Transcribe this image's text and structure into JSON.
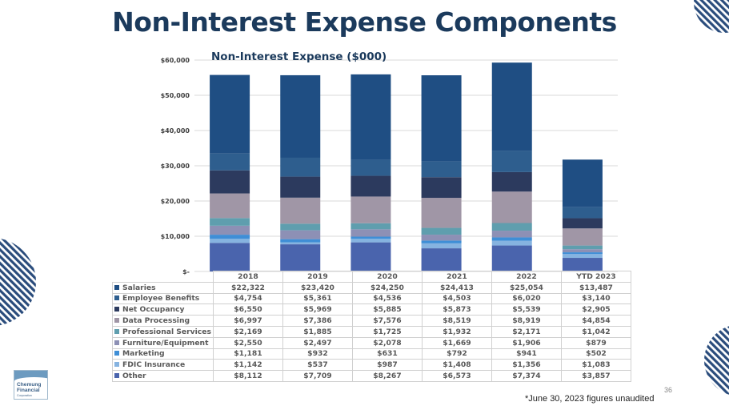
{
  "header": {
    "title": "Non-Interest Expense Components"
  },
  "footer": {
    "footnote": "*June 30, 2023 figures unaudited",
    "page_number": "36"
  },
  "logo": {
    "name_line1": "Chemung",
    "name_line2": "Financial",
    "name_line3": "Corporation"
  },
  "colors": {
    "title": "#1b3a5c",
    "Salaries": "#1f4e83",
    "Employee Benefits": "#2e5e8e",
    "Net Occupancy": "#2c3a5e",
    "Data Processing": "#a096a6",
    "Professional Services": "#5f9eae",
    "Furniture/Equipment": "#8d90b5",
    "Marketing": "#3f8ed6",
    "FDIC Insurance": "#86b3e0",
    "Other": "#4a64ad",
    "stripes": "#2a4c7c"
  },
  "chart_data": {
    "type": "bar",
    "stacked": true,
    "title": "Non-Interest Expense ($000)",
    "categories": [
      "2018",
      "2019",
      "2020",
      "2021",
      "2022",
      "YTD 2023"
    ],
    "ylim": [
      0,
      60000
    ],
    "yticks": [
      0,
      10000,
      20000,
      30000,
      40000,
      50000,
      60000
    ],
    "ytick_labels": [
      "$-",
      "$10,000",
      "$20,000",
      "$30,000",
      "$40,000",
      "$50,000",
      "$60,000"
    ],
    "grid": true,
    "series": [
      {
        "name": "Salaries",
        "values": [
          22322,
          23420,
          24250,
          24413,
          25054,
          13487
        ],
        "labels": [
          "$22,322",
          "$23,420",
          "$24,250",
          "$24,413",
          "$25,054",
          "$13,487"
        ]
      },
      {
        "name": "Employee Benefits",
        "values": [
          4754,
          5361,
          4536,
          4503,
          6020,
          3140
        ],
        "labels": [
          "$4,754",
          "$5,361",
          "$4,536",
          "$4,503",
          "$6,020",
          "$3,140"
        ]
      },
      {
        "name": "Net Occupancy",
        "values": [
          6550,
          5969,
          5885,
          5873,
          5539,
          2905
        ],
        "labels": [
          "$6,550",
          "$5,969",
          "$5,885",
          "$5,873",
          "$5,539",
          "$2,905"
        ]
      },
      {
        "name": "Data Processing",
        "values": [
          6997,
          7386,
          7576,
          8519,
          8919,
          4854
        ],
        "labels": [
          "$6,997",
          "$7,386",
          "$7,576",
          "$8,519",
          "$8,919",
          "$4,854"
        ]
      },
      {
        "name": "Professional Services",
        "values": [
          2169,
          1885,
          1725,
          1932,
          2171,
          1042
        ],
        "labels": [
          "$2,169",
          "$1,885",
          "$1,725",
          "$1,932",
          "$2,171",
          "$1,042"
        ]
      },
      {
        "name": "Furniture/Equipment",
        "values": [
          2550,
          2497,
          2078,
          1669,
          1906,
          879
        ],
        "labels": [
          "$2,550",
          "$2,497",
          "$2,078",
          "$1,669",
          "$1,906",
          "$879"
        ]
      },
      {
        "name": "Marketing",
        "values": [
          1181,
          932,
          631,
          792,
          941,
          502
        ],
        "labels": [
          "$1,181",
          "$932",
          "$631",
          "$792",
          "$941",
          "$502"
        ]
      },
      {
        "name": "FDIC Insurance",
        "values": [
          1142,
          537,
          987,
          1408,
          1356,
          1083
        ],
        "labels": [
          "$1,142",
          "$537",
          "$987",
          "$1,408",
          "$1,356",
          "$1,083"
        ]
      },
      {
        "name": "Other",
        "values": [
          8112,
          7709,
          8267,
          6573,
          7374,
          3857
        ],
        "labels": [
          "$8,112",
          "$7,709",
          "$8,267",
          "$6,573",
          "$7,374",
          "$3,857"
        ]
      }
    ]
  }
}
